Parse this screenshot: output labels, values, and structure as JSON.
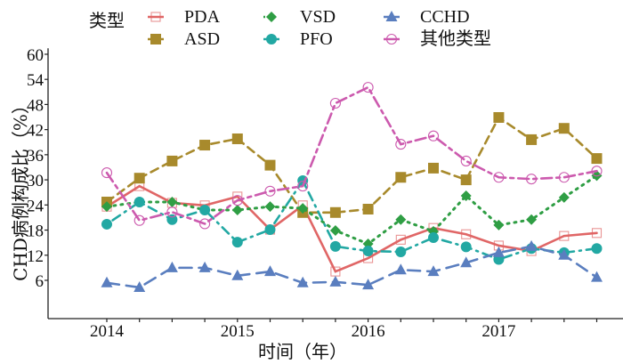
{
  "chart_data": {
    "type": "line",
    "title": "",
    "xlabel": "时间（年）",
    "ylabel": "CHD病例构成比（%）",
    "x_tick_labels": [
      "2014",
      "2015",
      "2016",
      "2017"
    ],
    "x": [
      2014.0,
      2014.25,
      2014.5,
      2014.75,
      2015.0,
      2015.25,
      2015.5,
      2015.75,
      2016.0,
      2016.25,
      2016.5,
      2016.75,
      2017.0,
      2017.25,
      2017.5,
      2017.75
    ],
    "xlim": [
      2013.55,
      2017.95
    ],
    "y_ticks": [
      6,
      12,
      18,
      24,
      30,
      36,
      42,
      48,
      54,
      60
    ],
    "ylim": [
      0,
      61
    ],
    "grid": false,
    "legend": {
      "title": "类型",
      "placement": "top"
    },
    "series": [
      {
        "name": "PDA",
        "color": "#e06666",
        "marker": "open-square",
        "dash": "solid",
        "values": [
          23.6,
          28.5,
          24.5,
          23.9,
          26.0,
          18.1,
          23.9,
          8.1,
          11.3,
          15.7,
          18.5,
          17.0,
          14.3,
          13.0,
          16.6,
          17.3
        ]
      },
      {
        "name": "ASD",
        "color": "#a88a2c",
        "marker": "square",
        "dash": "dashed",
        "values": [
          24.7,
          30.4,
          34.5,
          38.3,
          39.8,
          33.5,
          22.2,
          22.2,
          23.0,
          30.6,
          32.8,
          30.0,
          44.9,
          39.6,
          42.3,
          35.1
        ]
      },
      {
        "name": "VSD",
        "color": "#2f9e44",
        "marker": "diamond",
        "dash": "dotted",
        "values": [
          23.6,
          24.7,
          24.7,
          22.8,
          22.8,
          23.6,
          23.2,
          17.9,
          14.7,
          20.5,
          17.7,
          26.2,
          19.2,
          20.5,
          25.8,
          31.0
        ]
      },
      {
        "name": "PFO",
        "color": "#22a8a3",
        "marker": "circle",
        "dash": "dotdash",
        "values": [
          19.4,
          24.7,
          20.5,
          22.8,
          15.1,
          18.1,
          29.8,
          14.1,
          13.0,
          12.8,
          16.2,
          14.0,
          11.0,
          13.6,
          12.6,
          13.6
        ]
      },
      {
        "name": "CCHD",
        "color": "#5a7ebf",
        "marker": "triangle",
        "dash": "longdash",
        "values": [
          5.4,
          4.3,
          9.0,
          9.0,
          7.1,
          8.1,
          5.4,
          5.6,
          4.9,
          8.5,
          8.1,
          10.2,
          12.6,
          14.1,
          12.0,
          6.7
        ]
      },
      {
        "name": "其他类型",
        "color": "#cc5aae",
        "marker": "open-circle",
        "dash": "twodash",
        "values": [
          31.7,
          20.3,
          22.3,
          19.5,
          25.1,
          27.3,
          28.5,
          48.3,
          52.1,
          38.5,
          40.5,
          34.5,
          30.6,
          30.2,
          30.6,
          32.1
        ]
      }
    ]
  }
}
